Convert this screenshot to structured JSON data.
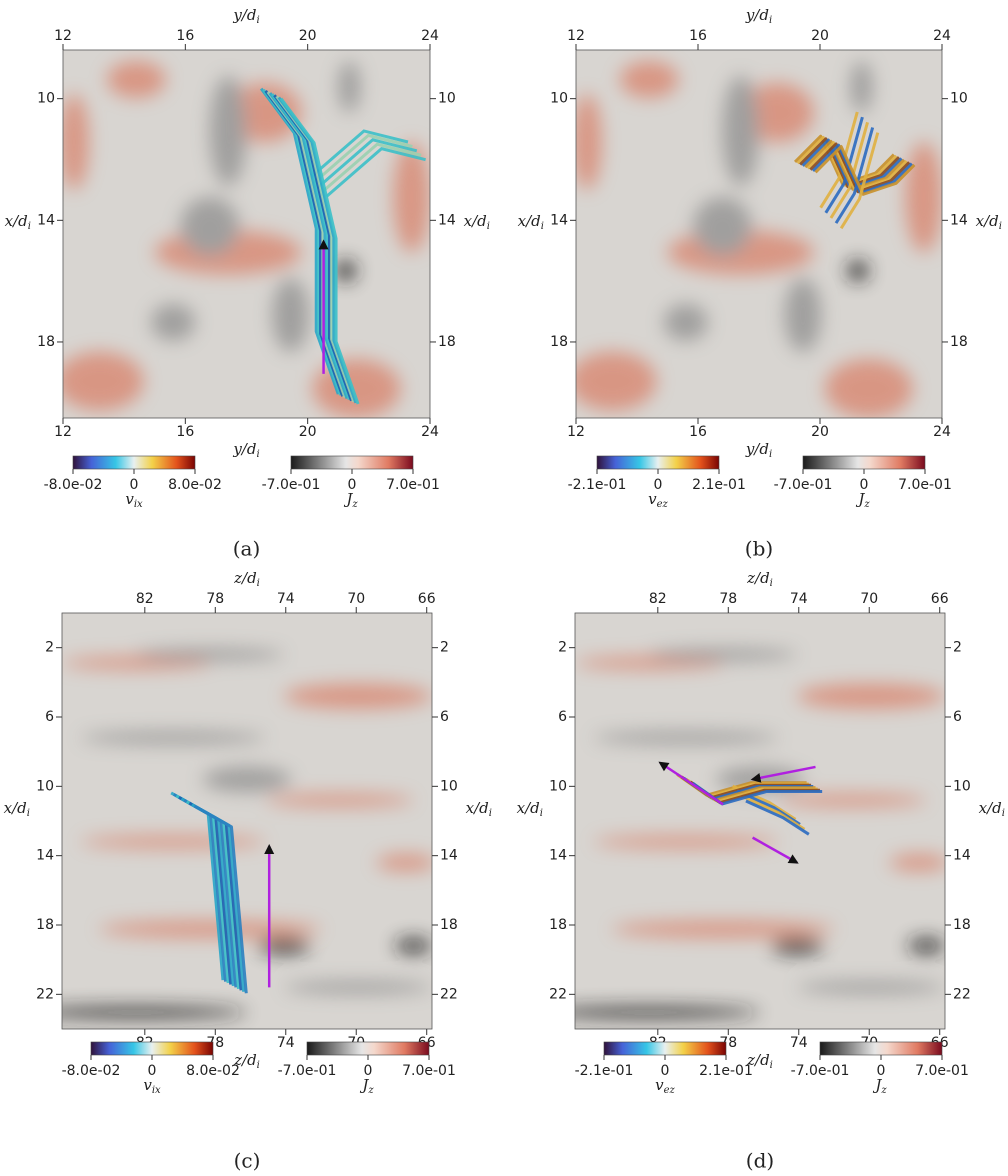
{
  "panels": [
    {
      "label": "(a)",
      "x_label": {
        "text": "y/d",
        "sub": "i"
      },
      "y_label": {
        "text": "x/d",
        "sub": "i"
      },
      "xlim": [
        12,
        24
      ],
      "ylim": [
        8.4,
        20.5
      ],
      "xticks": [
        12,
        16,
        20,
        24
      ],
      "yticks": [
        10,
        14,
        18
      ],
      "colorbars": [
        {
          "lim": [
            -0.08,
            0.08
          ],
          "ticks": [
            {
              "value": -0.08,
              "label": "-8.0e-02"
            },
            0,
            {
              "value": 0.08,
              "label": "8.0e-02"
            }
          ],
          "label": {
            "text": "v",
            "sub": "ix"
          }
        },
        {
          "lim": [
            -0.7,
            0.7
          ],
          "ticks": [
            {
              "value": -0.7,
              "label": "-7.0e-01"
            },
            0,
            {
              "value": 0.7,
              "label": "7.0e-01"
            }
          ],
          "label": {
            "text": "J",
            "sub": "z"
          }
        }
      ]
    },
    {
      "label": "(b)",
      "x_label": {
        "text": "y/d",
        "sub": "i"
      },
      "y_label": {
        "text": "x/d",
        "sub": "i"
      },
      "xlim": [
        12,
        24
      ],
      "ylim": [
        8.4,
        20.5
      ],
      "xticks": [
        12,
        16,
        20,
        24
      ],
      "yticks": [
        10,
        14,
        18
      ],
      "colorbars": [
        {
          "lim": [
            -0.21,
            0.21
          ],
          "ticks": [
            {
              "value": -0.21,
              "label": "-2.1e-01"
            },
            0,
            {
              "value": 0.21,
              "label": "2.1e-01"
            }
          ],
          "label": {
            "text": "v",
            "sub": "ez"
          }
        },
        {
          "lim": [
            -0.7,
            0.7
          ],
          "ticks": [
            {
              "value": -0.7,
              "label": "-7.0e-01"
            },
            0,
            {
              "value": 0.7,
              "label": "7.0e-01"
            }
          ],
          "label": {
            "text": "J",
            "sub": "z"
          }
        }
      ]
    },
    {
      "label": "(c)",
      "x_label": {
        "text": "z/d",
        "sub": "i"
      },
      "y_label": {
        "text": "x/d",
        "sub": "i"
      },
      "xlim": [
        86.7,
        65.7
      ],
      "ylim": [
        0,
        24
      ],
      "xticks": [
        82,
        78,
        74,
        70,
        66
      ],
      "yticks": [
        2,
        6,
        10,
        14,
        18,
        22
      ],
      "colorbars": [
        {
          "lim": [
            -0.08,
            0.08
          ],
          "ticks": [
            {
              "value": -0.08,
              "label": "-8.0e-02"
            },
            0,
            {
              "value": 0.08,
              "label": "8.0e-02"
            }
          ],
          "label": {
            "text": "v",
            "sub": "ix"
          }
        },
        {
          "lim": [
            -0.7,
            0.7
          ],
          "ticks": [
            {
              "value": -0.7,
              "label": "-7.0e-01"
            },
            0,
            {
              "value": 0.7,
              "label": "7.0e-01"
            }
          ],
          "label": {
            "text": "J",
            "sub": "z"
          }
        }
      ]
    },
    {
      "label": "(d)",
      "x_label": {
        "text": "z/d",
        "sub": "i"
      },
      "y_label": {
        "text": "x/d",
        "sub": "i"
      },
      "xlim": [
        86.7,
        65.7
      ],
      "ylim": [
        0,
        24
      ],
      "xticks": [
        82,
        78,
        74,
        70,
        66
      ],
      "yticks": [
        2,
        6,
        10,
        14,
        18,
        22
      ],
      "colorbars": [
        {
          "lim": [
            -0.21,
            0.21
          ],
          "ticks": [
            {
              "value": -0.21,
              "label": "-2.1e-01"
            },
            0,
            {
              "value": 0.21,
              "label": "2.1e-01"
            }
          ],
          "label": {
            "text": "v",
            "sub": "ez"
          }
        },
        {
          "lim": [
            -0.7,
            0.7
          ],
          "ticks": [
            {
              "value": -0.7,
              "label": "-7.0e-01"
            },
            0,
            {
              "value": 0.7,
              "label": "7.0e-01"
            }
          ],
          "label": {
            "text": "J",
            "sub": "z"
          }
        }
      ]
    }
  ]
}
